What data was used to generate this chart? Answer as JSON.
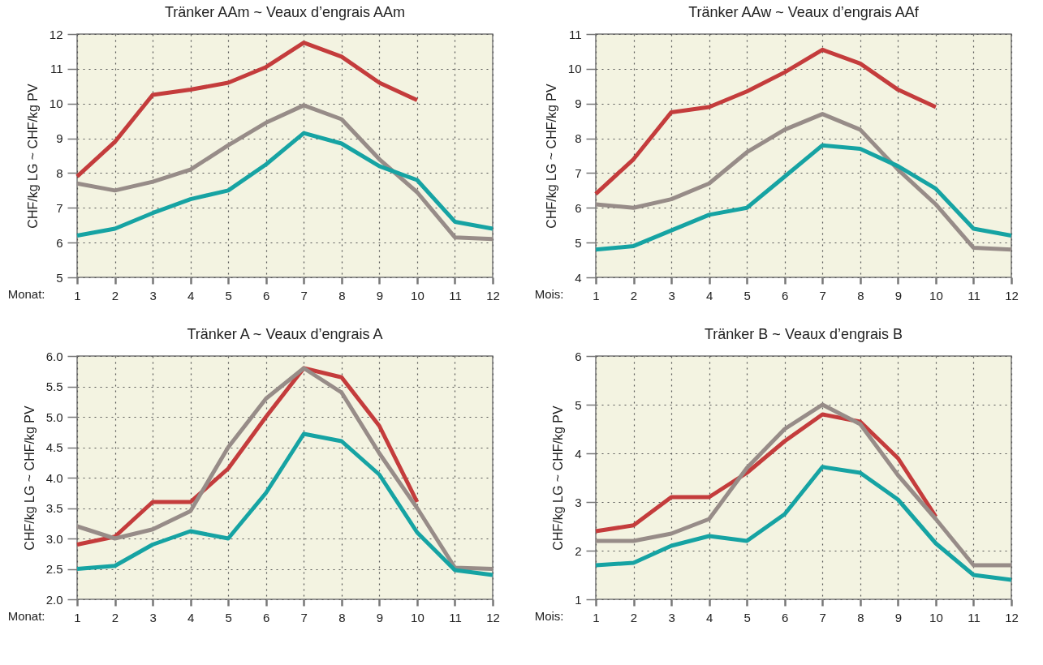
{
  "chart_data": [
    {
      "type": "line",
      "title": "Tränker AAm ~ Veaux d’engrais AAm",
      "xlabel": "Monat:",
      "ylabel": "CHF/kg LG ~ CHF/kg PV",
      "x": [
        1,
        2,
        3,
        4,
        5,
        6,
        7,
        8,
        9,
        10,
        11,
        12
      ],
      "xlim": [
        1,
        12
      ],
      "xticks": [
        1,
        2,
        3,
        4,
        5,
        6,
        7,
        8,
        9,
        10,
        11,
        12
      ],
      "ylim": [
        5,
        12
      ],
      "yticks": [
        5,
        6,
        7,
        8,
        9,
        10,
        11,
        12
      ],
      "grid": true,
      "series": [
        {
          "color": "#c43c3c",
          "values": [
            7.9,
            8.9,
            10.25,
            10.4,
            10.6,
            11.05,
            11.75,
            11.35,
            10.6,
            10.1,
            null,
            null
          ]
        },
        {
          "color": "#978c88",
          "values": [
            7.7,
            7.5,
            7.75,
            8.1,
            8.8,
            9.45,
            9.95,
            9.55,
            8.4,
            7.45,
            6.15,
            6.1
          ]
        },
        {
          "color": "#16a3a3",
          "values": [
            6.2,
            6.4,
            6.85,
            7.25,
            7.5,
            8.25,
            9.15,
            8.85,
            8.2,
            7.8,
            6.6,
            6.4
          ]
        }
      ]
    },
    {
      "type": "line",
      "title": "Tränker AAw ~ Veaux d’engrais AAf",
      "xlabel": "Mois:",
      "ylabel": "CHF/kg LG ~ CHF/kg PV",
      "x": [
        1,
        2,
        3,
        4,
        5,
        6,
        7,
        8,
        9,
        10,
        11,
        12
      ],
      "xlim": [
        1,
        12
      ],
      "xticks": [
        1,
        2,
        3,
        4,
        5,
        6,
        7,
        8,
        9,
        10,
        11,
        12
      ],
      "ylim": [
        4,
        11
      ],
      "yticks": [
        4,
        5,
        6,
        7,
        8,
        9,
        10,
        11
      ],
      "grid": true,
      "series": [
        {
          "color": "#c43c3c",
          "values": [
            6.4,
            7.4,
            8.75,
            8.9,
            9.35,
            9.9,
            10.55,
            10.15,
            9.4,
            8.9,
            null,
            null
          ]
        },
        {
          "color": "#978c88",
          "values": [
            6.1,
            6.0,
            6.25,
            6.7,
            7.6,
            8.25,
            8.7,
            8.25,
            7.1,
            6.1,
            4.85,
            4.8
          ]
        },
        {
          "color": "#16a3a3",
          "values": [
            4.8,
            4.9,
            5.35,
            5.8,
            6.0,
            6.9,
            7.8,
            7.7,
            7.2,
            6.55,
            5.4,
            5.2
          ]
        }
      ]
    },
    {
      "type": "line",
      "title": "Tränker A ~ Veaux d’engrais A",
      "xlabel": "Monat:",
      "ylabel": "CHF/kg LG ~ CHF/kg PV",
      "x": [
        1,
        2,
        3,
        4,
        5,
        6,
        7,
        8,
        9,
        10,
        11,
        12
      ],
      "xlim": [
        1,
        12
      ],
      "xticks": [
        1,
        2,
        3,
        4,
        5,
        6,
        7,
        8,
        9,
        10,
        11,
        12
      ],
      "ylim": [
        2,
        6
      ],
      "yticks": [
        {
          "value": 2,
          "label": "2.0"
        },
        2.5,
        {
          "value": 3,
          "label": "3.0"
        },
        3.5,
        {
          "value": 4,
          "label": "4.0"
        },
        4.5,
        {
          "value": 5,
          "label": "5.0"
        },
        5.5,
        {
          "value": 6,
          "label": "6.0"
        }
      ],
      "grid": true,
      "series": [
        {
          "color": "#c43c3c",
          "values": [
            2.9,
            3.03,
            3.6,
            3.6,
            4.15,
            5.0,
            5.8,
            5.65,
            4.85,
            3.6,
            null,
            null
          ]
        },
        {
          "color": "#978c88",
          "values": [
            3.2,
            3.0,
            3.15,
            3.45,
            4.5,
            5.3,
            5.8,
            5.4,
            4.4,
            3.5,
            2.52,
            2.5
          ]
        },
        {
          "color": "#16a3a3",
          "values": [
            2.5,
            2.55,
            2.9,
            3.12,
            3.0,
            3.75,
            4.72,
            4.6,
            4.05,
            3.1,
            2.48,
            2.4
          ]
        }
      ]
    },
    {
      "type": "line",
      "title": "Tränker B ~ Veaux d’engrais B",
      "xlabel": "Mois:",
      "ylabel": "CHF/kg LG ~ CHF/kg PV",
      "x": [
        1,
        2,
        3,
        4,
        5,
        6,
        7,
        8,
        9,
        10,
        11,
        12
      ],
      "xlim": [
        1,
        12
      ],
      "xticks": [
        1,
        2,
        3,
        4,
        5,
        6,
        7,
        8,
        9,
        10,
        11,
        12
      ],
      "ylim": [
        1,
        6
      ],
      "yticks": [
        1,
        2,
        3,
        4,
        5,
        6
      ],
      "grid": true,
      "series": [
        {
          "color": "#c43c3c",
          "values": [
            2.4,
            2.52,
            3.1,
            3.1,
            3.6,
            4.25,
            4.8,
            4.65,
            3.9,
            2.7,
            null,
            null
          ]
        },
        {
          "color": "#978c88",
          "values": [
            2.2,
            2.2,
            2.35,
            2.65,
            3.7,
            4.5,
            5.0,
            4.6,
            3.55,
            2.65,
            1.7,
            1.7
          ]
        },
        {
          "color": "#16a3a3",
          "values": [
            1.7,
            1.75,
            2.1,
            2.3,
            2.2,
            2.75,
            3.72,
            3.6,
            3.05,
            2.15,
            1.5,
            1.4
          ]
        }
      ]
    }
  ]
}
